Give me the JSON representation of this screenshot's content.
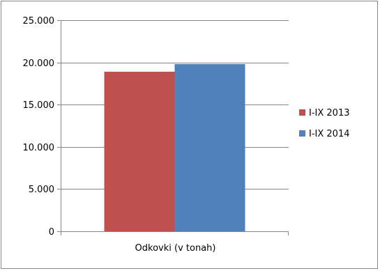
{
  "chart_data": {
    "type": "bar",
    "categories": [
      "Odkovki (v tonah)"
    ],
    "series": [
      {
        "name": "I-IX 2013",
        "values": [
          18900
        ],
        "color": "#C0504D"
      },
      {
        "name": "I-IX 2014",
        "values": [
          19800
        ],
        "color": "#4F81BD"
      }
    ],
    "ylim": [
      0,
      25000
    ],
    "yticks": [
      0,
      5000,
      10000,
      15000,
      20000,
      25000
    ],
    "ytick_labels": [
      "0",
      "5.000",
      "10.000",
      "15.000",
      "20.000",
      "25.000"
    ],
    "grid": true,
    "legend_position": "right",
    "title": "",
    "xlabel": "",
    "ylabel": ""
  }
}
